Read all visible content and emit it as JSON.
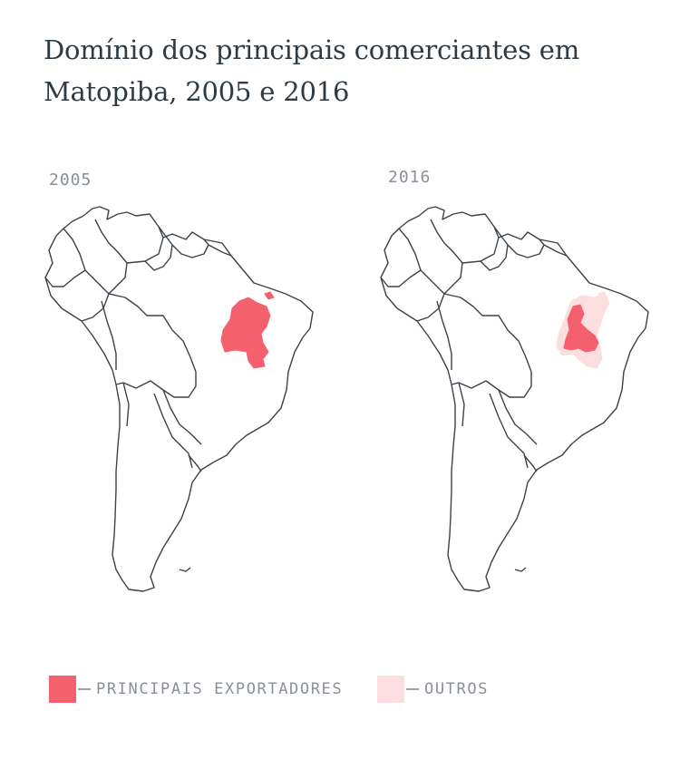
{
  "title": "Domínio dos principais comerciantes em Matopiba, 2005 e 2016",
  "maps": [
    {
      "label": "2005",
      "regions": [
        "principais"
      ]
    },
    {
      "label": "2016",
      "regions": [
        "principais",
        "outros"
      ]
    }
  ],
  "legend": [
    {
      "label": "PRINCIPAIS EXPORTADORES",
      "color": "#f5606e"
    },
    {
      "label": "OUTROS",
      "color": "#fcdde0"
    }
  ],
  "colors": {
    "outline": "#3b4248",
    "principais": "#f5606e",
    "outros": "#fcdde0"
  }
}
